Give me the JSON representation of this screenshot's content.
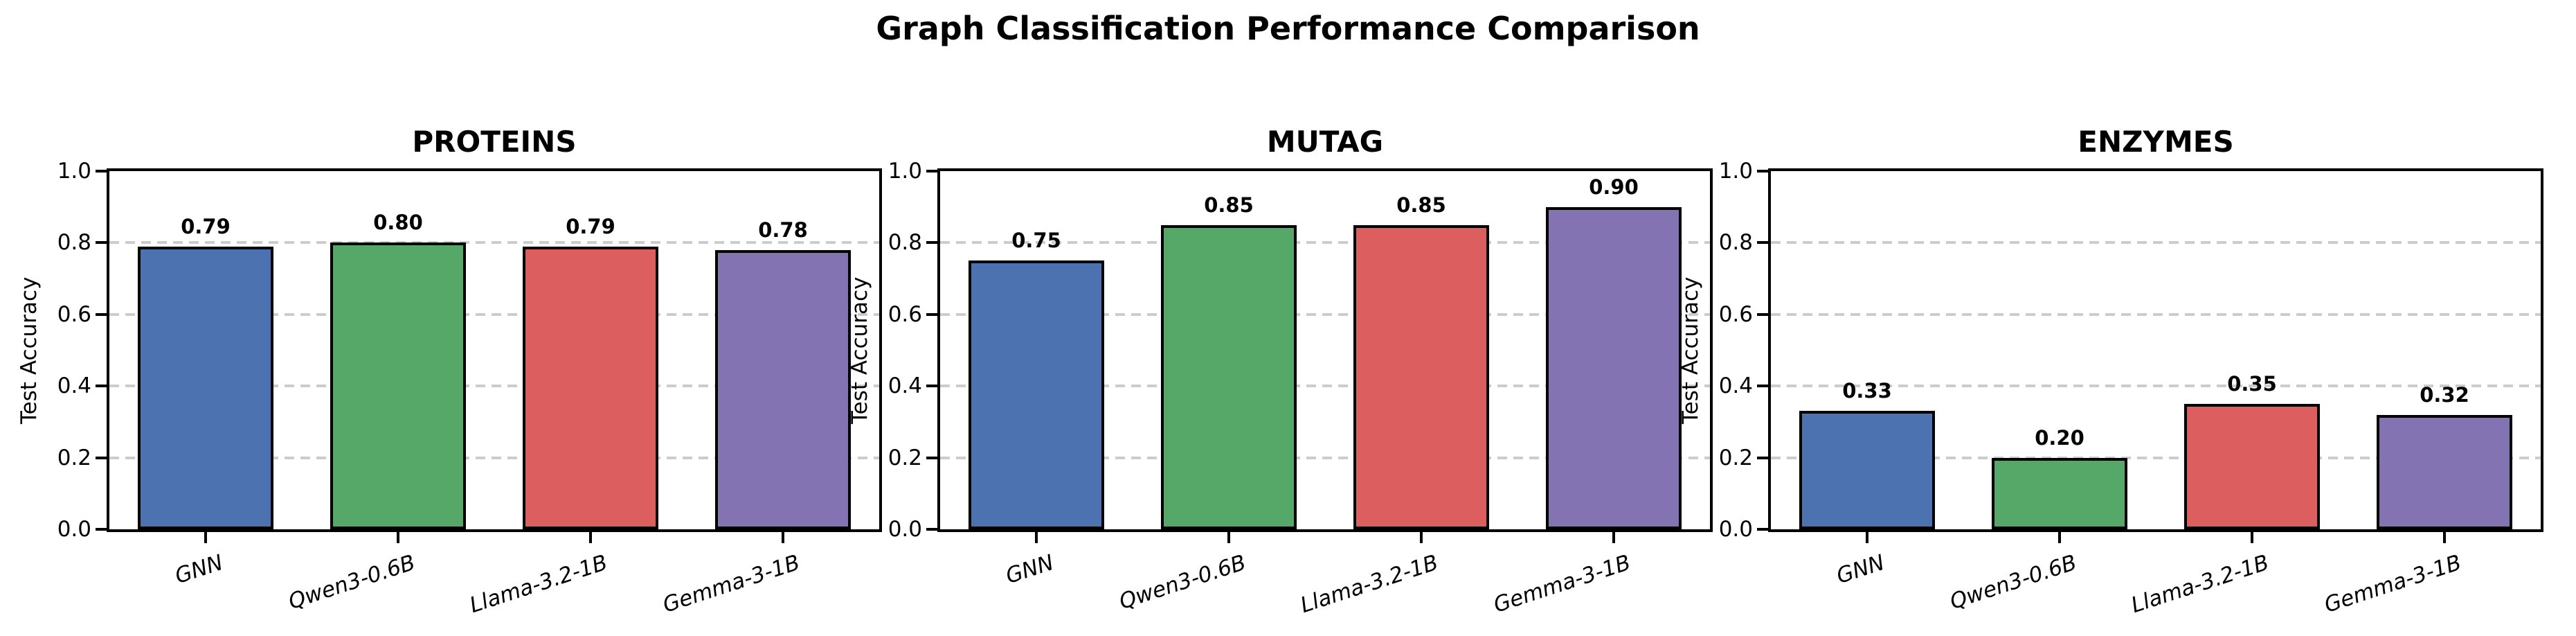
{
  "figure": {
    "title": "Graph Classification Performance Comparison"
  },
  "style": {
    "bar_colors": [
      "#4C72B0",
      "#55A868",
      "#DC5E5E",
      "#8473B2"
    ],
    "bar_edge_color": "#000000",
    "grid_color": "#cccccc",
    "spine_color": "#000000",
    "text_color": "#000000",
    "background": "#ffffff"
  },
  "chart_data": [
    {
      "type": "bar",
      "title": "PROTEINS",
      "categories": [
        "GNN",
        "Qwen3-0.6B",
        "Llama-3.2-1B",
        "Gemma-3-1B"
      ],
      "values": [
        0.79,
        0.8,
        0.79,
        0.78
      ],
      "value_labels": [
        "0.79",
        "0.80",
        "0.79",
        "0.78"
      ],
      "xlabel": "",
      "ylabel": "Test Accuracy",
      "ylim": [
        0.0,
        1.0
      ],
      "yticks": [
        "0.0",
        "0.2",
        "0.4",
        "0.6",
        "0.8",
        "1.0"
      ],
      "grid": "dashed-horizontal",
      "legend": "none"
    },
    {
      "type": "bar",
      "title": "MUTAG",
      "categories": [
        "GNN",
        "Qwen3-0.6B",
        "Llama-3.2-1B",
        "Gemma-3-1B"
      ],
      "values": [
        0.75,
        0.85,
        0.85,
        0.9
      ],
      "value_labels": [
        "0.75",
        "0.85",
        "0.85",
        "0.90"
      ],
      "xlabel": "",
      "ylabel": "Test Accuracy",
      "ylim": [
        0.0,
        1.0
      ],
      "yticks": [
        "0.0",
        "0.2",
        "0.4",
        "0.6",
        "0.8",
        "1.0"
      ],
      "grid": "dashed-horizontal",
      "legend": "none"
    },
    {
      "type": "bar",
      "title": "ENZYMES",
      "categories": [
        "GNN",
        "Qwen3-0.6B",
        "Llama-3.2-1B",
        "Gemma-3-1B"
      ],
      "values": [
        0.33,
        0.2,
        0.35,
        0.32
      ],
      "value_labels": [
        "0.33",
        "0.20",
        "0.35",
        "0.32"
      ],
      "xlabel": "",
      "ylabel": "Test Accuracy",
      "ylim": [
        0.0,
        1.0
      ],
      "yticks": [
        "0.0",
        "0.2",
        "0.4",
        "0.6",
        "0.8",
        "1.0"
      ],
      "grid": "dashed-horizontal",
      "legend": "none"
    }
  ]
}
